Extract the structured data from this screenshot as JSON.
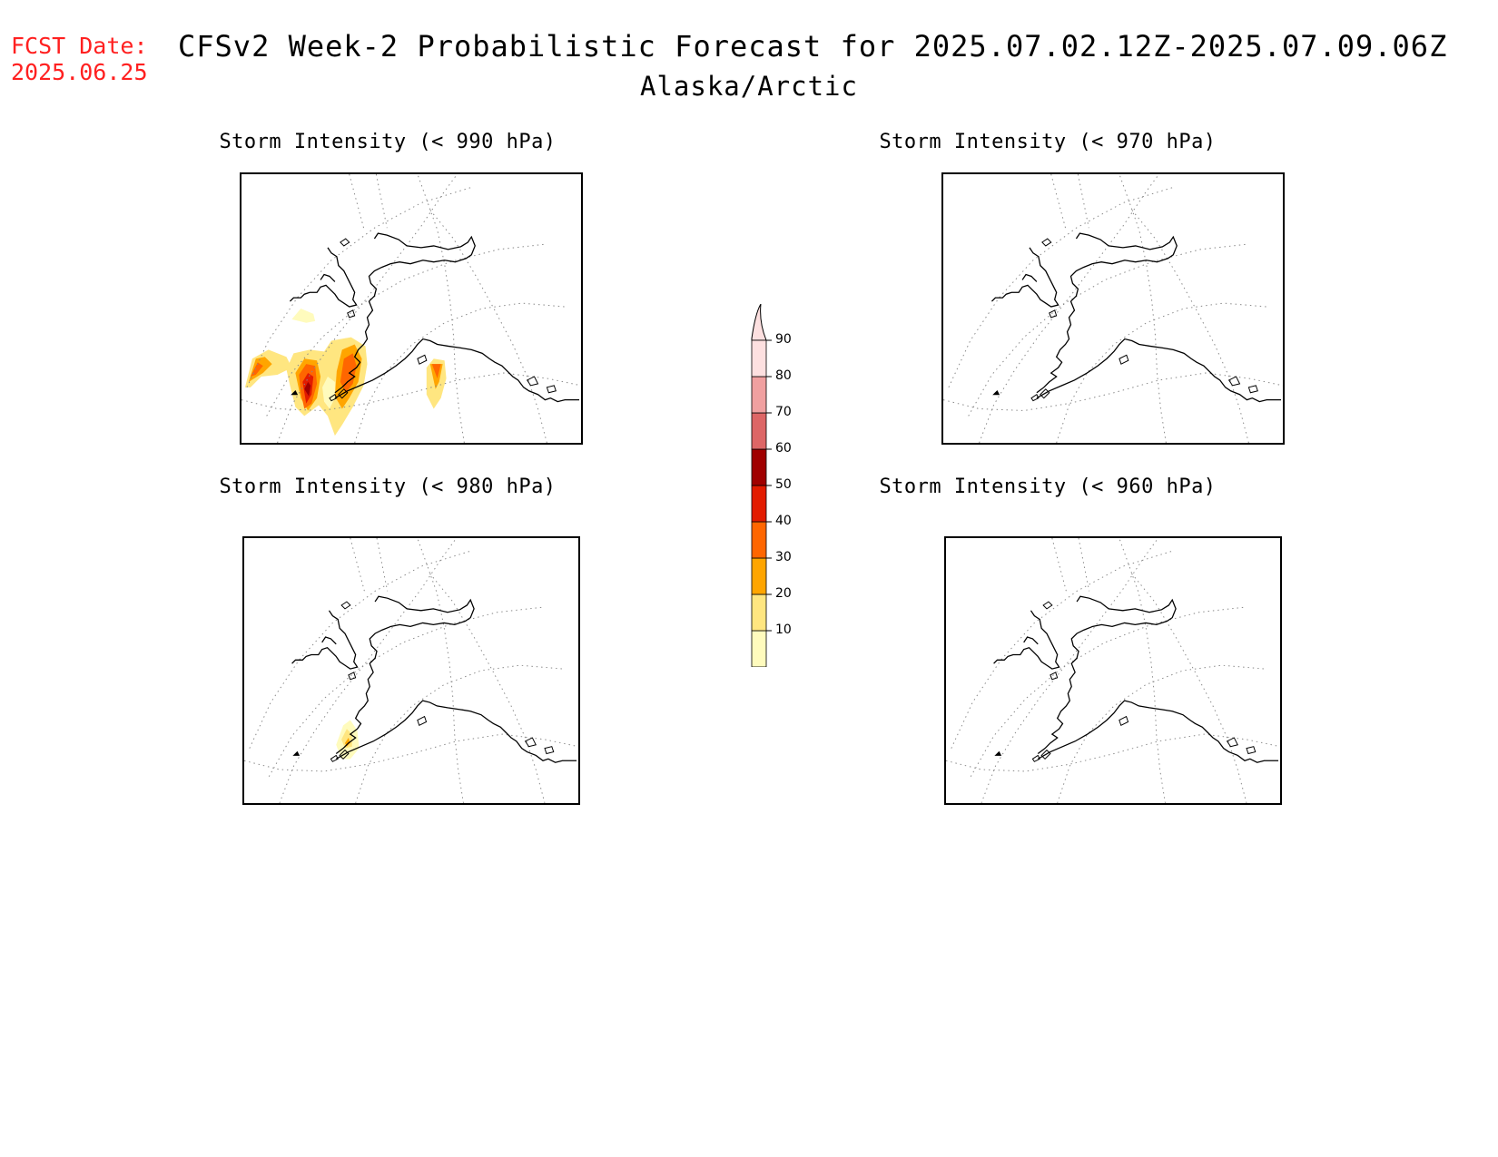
{
  "header": {
    "fcst_label": "FCST Date:",
    "fcst_date": "2025.06.25",
    "title": "CFSv2 Week-2 Probabilistic Forecast for 2025.07.02.12Z-2025.07.09.06Z",
    "region": "Alaska/Arctic"
  },
  "panels": [
    {
      "title": "Storm Intensity (< 990 hPa)",
      "has_data": true
    },
    {
      "title": "Storm Intensity (< 970 hPa)",
      "has_data": false
    },
    {
      "title": "Storm Intensity (< 980 hPa)",
      "has_data": true
    },
    {
      "title": "Storm Intensity (< 960 hPa)",
      "has_data": false
    }
  ],
  "colorbar": {
    "levels": [
      "10",
      "20",
      "30",
      "40",
      "50",
      "60",
      "70",
      "80",
      "90"
    ],
    "colors": [
      "#fffbbd",
      "#ffe680",
      "#ffa500",
      "#ff6600",
      "#e21b00",
      "#a00000",
      "#dd6666",
      "#f0a0a0",
      "#fde0e0"
    ]
  }
}
